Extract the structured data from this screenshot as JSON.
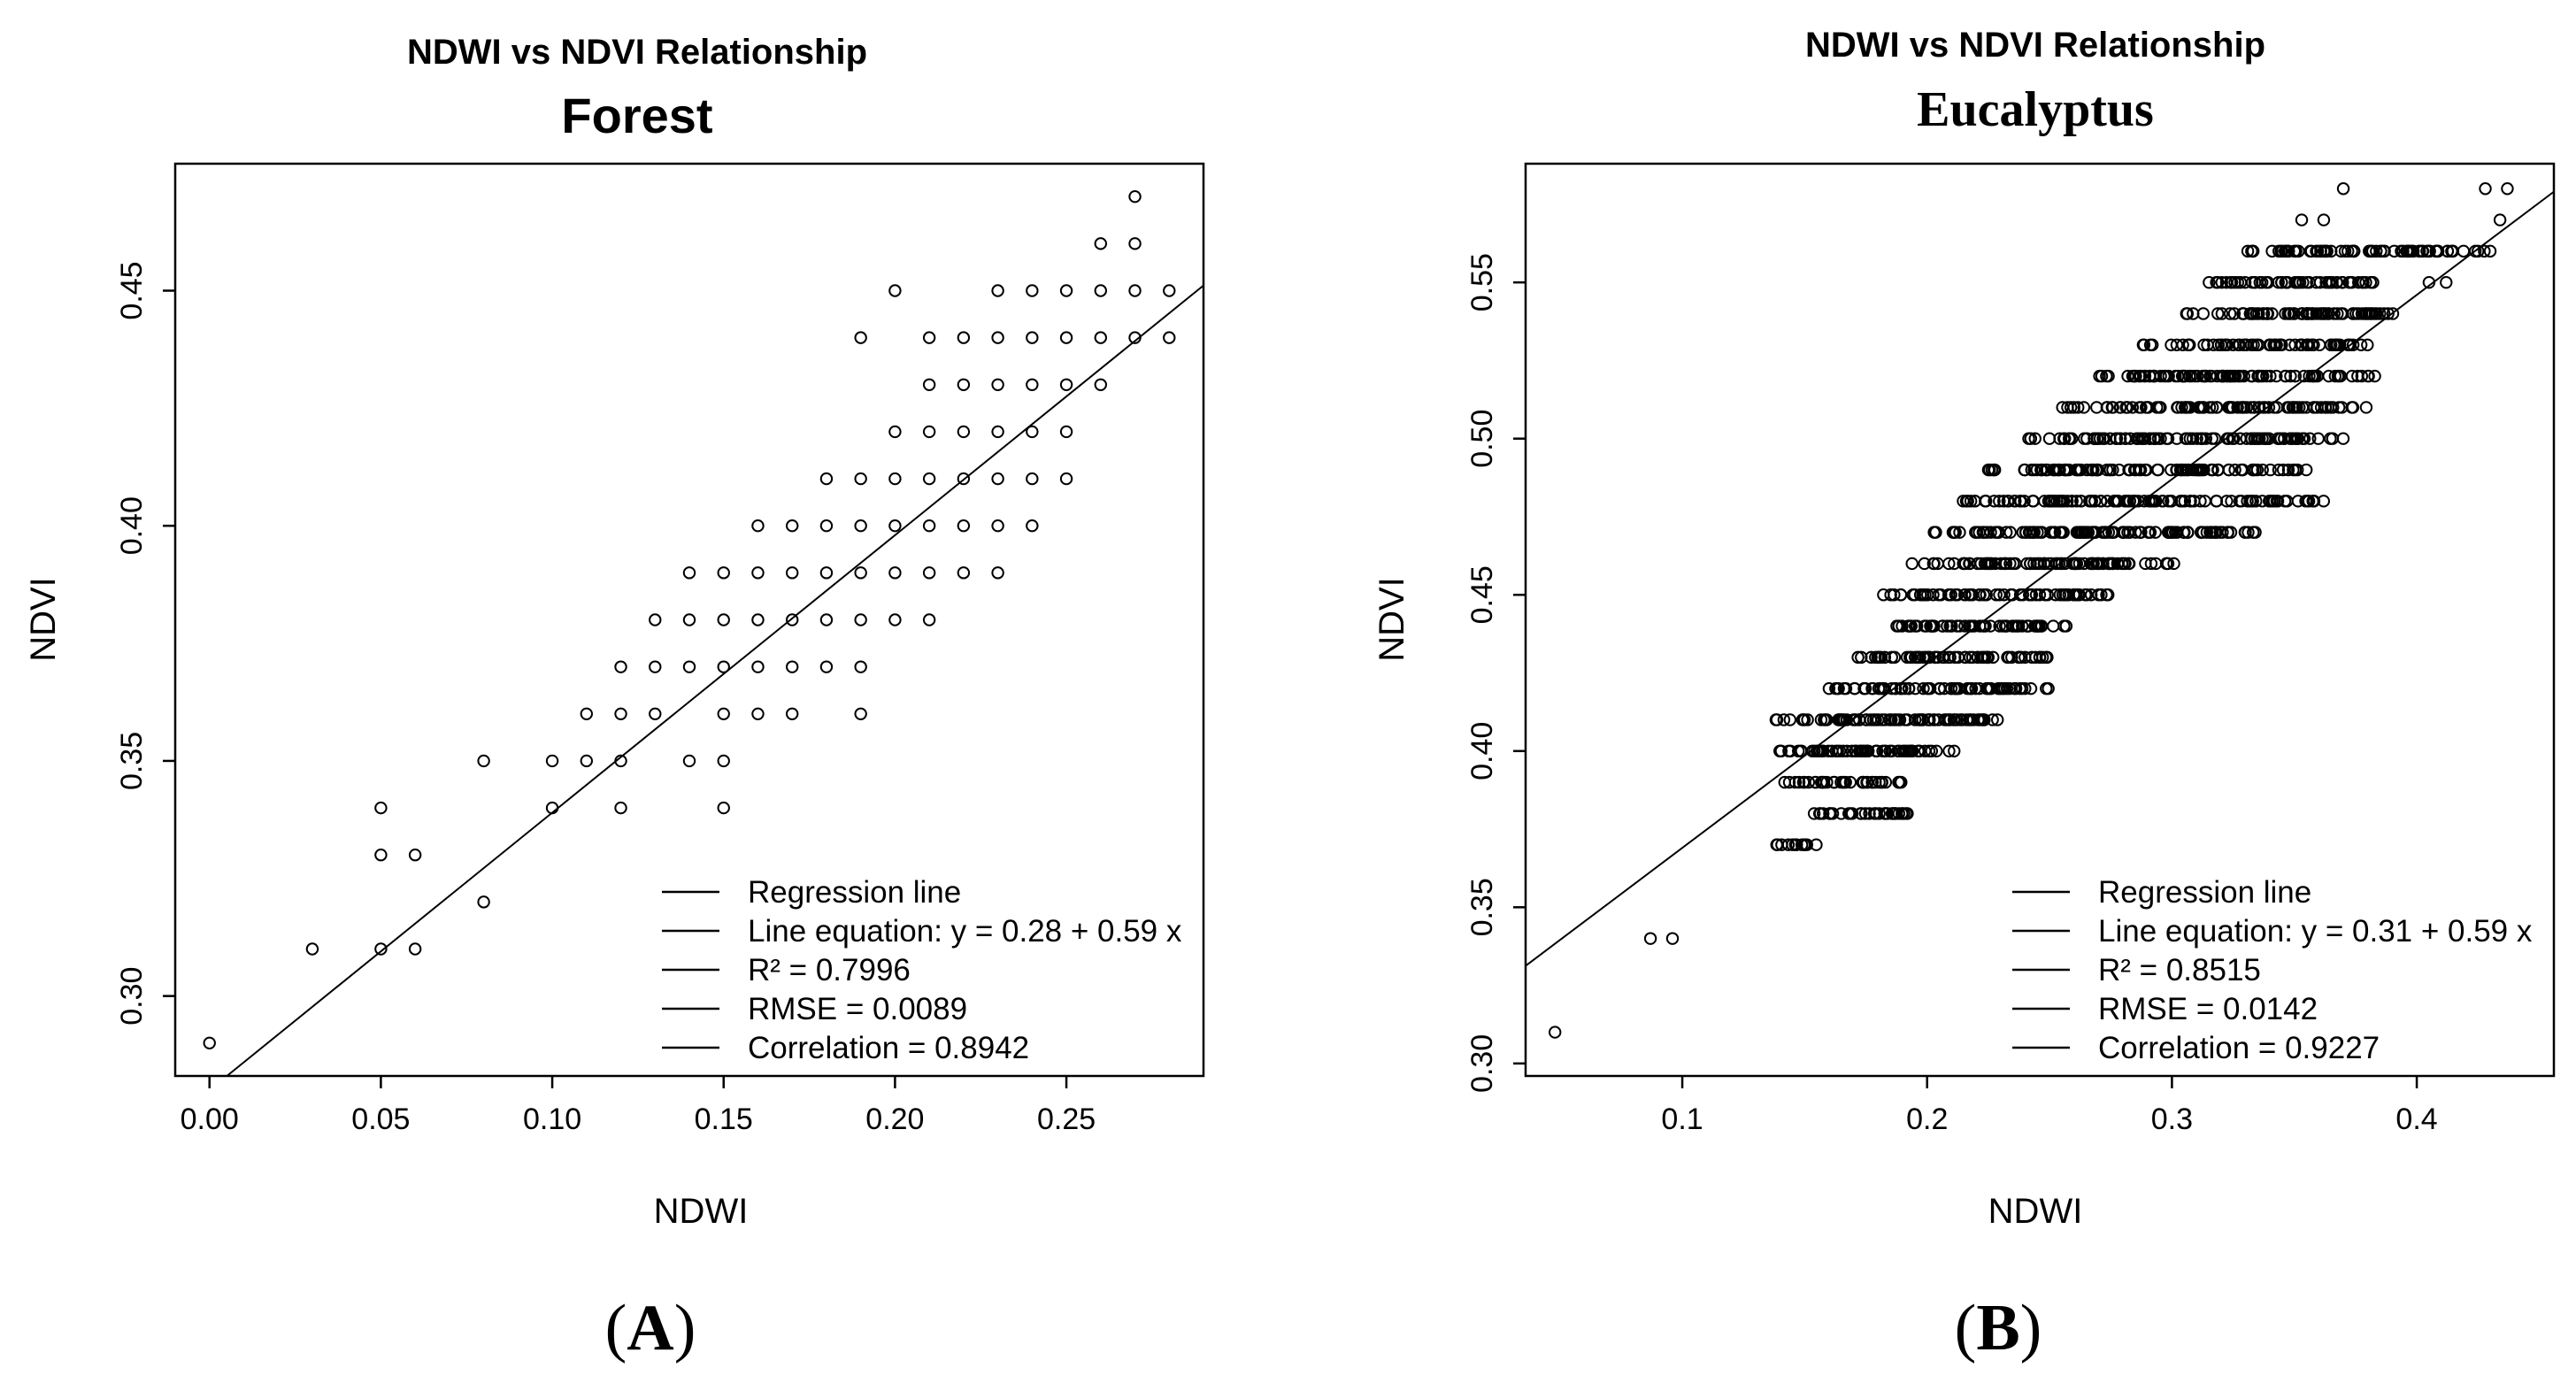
{
  "chart_data": [
    {
      "panel_letter": "A",
      "type": "scatter",
      "suptitle": "NDWI vs NDVI Relationship",
      "title": "Forest",
      "xlabel": "NDWI",
      "ylabel": "NDVI",
      "xlim": [
        -0.01,
        0.29
      ],
      "ylim": [
        0.283,
        0.477
      ],
      "xticks": [
        0.0,
        0.05,
        0.1,
        0.15,
        0.2,
        0.25
      ],
      "xtick_labels": [
        "0.00",
        "0.05",
        "0.10",
        "0.15",
        "0.20",
        "0.25"
      ],
      "yticks": [
        0.3,
        0.35,
        0.4,
        0.45
      ],
      "ytick_labels": [
        "0.30",
        "0.35",
        "0.40",
        "0.45"
      ],
      "regression": {
        "intercept": 0.28,
        "slope": 0.59
      },
      "legend_position": "bottom-right",
      "legend": [
        "Regression line",
        "Line equation: y = 0.28 + 0.59 x",
        "R² = 0.7996",
        "RMSE = 0.0089",
        "Correlation = 0.8942"
      ],
      "points": [
        [
          0.0,
          0.29
        ],
        [
          0.03,
          0.31
        ],
        [
          0.05,
          0.31
        ],
        [
          0.06,
          0.31
        ],
        [
          0.05,
          0.33
        ],
        [
          0.06,
          0.33
        ],
        [
          0.05,
          0.34
        ],
        [
          0.08,
          0.32
        ],
        [
          0.08,
          0.35
        ],
        [
          0.1,
          0.34
        ],
        [
          0.1,
          0.35
        ],
        [
          0.11,
          0.35
        ],
        [
          0.12,
          0.34
        ],
        [
          0.12,
          0.35
        ],
        [
          0.11,
          0.36
        ],
        [
          0.12,
          0.36
        ],
        [
          0.13,
          0.36
        ],
        [
          0.12,
          0.37
        ],
        [
          0.13,
          0.37
        ],
        [
          0.14,
          0.37
        ],
        [
          0.13,
          0.38
        ],
        [
          0.14,
          0.38
        ],
        [
          0.15,
          0.38
        ],
        [
          0.14,
          0.39
        ],
        [
          0.15,
          0.39
        ],
        [
          0.14,
          0.35
        ],
        [
          0.15,
          0.35
        ],
        [
          0.15,
          0.34
        ],
        [
          0.15,
          0.36
        ],
        [
          0.15,
          0.37
        ],
        [
          0.16,
          0.36
        ],
        [
          0.16,
          0.37
        ],
        [
          0.16,
          0.38
        ],
        [
          0.16,
          0.39
        ],
        [
          0.16,
          0.4
        ],
        [
          0.17,
          0.36
        ],
        [
          0.17,
          0.37
        ],
        [
          0.17,
          0.38
        ],
        [
          0.17,
          0.39
        ],
        [
          0.17,
          0.4
        ],
        [
          0.18,
          0.37
        ],
        [
          0.18,
          0.38
        ],
        [
          0.18,
          0.39
        ],
        [
          0.18,
          0.4
        ],
        [
          0.18,
          0.41
        ],
        [
          0.19,
          0.36
        ],
        [
          0.19,
          0.37
        ],
        [
          0.19,
          0.38
        ],
        [
          0.19,
          0.39
        ],
        [
          0.19,
          0.4
        ],
        [
          0.19,
          0.41
        ],
        [
          0.19,
          0.44
        ],
        [
          0.2,
          0.38
        ],
        [
          0.2,
          0.39
        ],
        [
          0.2,
          0.4
        ],
        [
          0.2,
          0.41
        ],
        [
          0.2,
          0.42
        ],
        [
          0.2,
          0.45
        ],
        [
          0.21,
          0.38
        ],
        [
          0.21,
          0.39
        ],
        [
          0.21,
          0.4
        ],
        [
          0.21,
          0.41
        ],
        [
          0.21,
          0.42
        ],
        [
          0.21,
          0.43
        ],
        [
          0.21,
          0.44
        ],
        [
          0.22,
          0.39
        ],
        [
          0.22,
          0.4
        ],
        [
          0.22,
          0.41
        ],
        [
          0.22,
          0.42
        ],
        [
          0.22,
          0.43
        ],
        [
          0.22,
          0.44
        ],
        [
          0.23,
          0.39
        ],
        [
          0.23,
          0.4
        ],
        [
          0.23,
          0.41
        ],
        [
          0.23,
          0.42
        ],
        [
          0.23,
          0.43
        ],
        [
          0.23,
          0.44
        ],
        [
          0.23,
          0.45
        ],
        [
          0.24,
          0.4
        ],
        [
          0.24,
          0.41
        ],
        [
          0.24,
          0.42
        ],
        [
          0.24,
          0.43
        ],
        [
          0.24,
          0.44
        ],
        [
          0.24,
          0.45
        ],
        [
          0.25,
          0.41
        ],
        [
          0.25,
          0.42
        ],
        [
          0.25,
          0.43
        ],
        [
          0.25,
          0.44
        ],
        [
          0.25,
          0.45
        ],
        [
          0.26,
          0.43
        ],
        [
          0.26,
          0.44
        ],
        [
          0.26,
          0.45
        ],
        [
          0.26,
          0.46
        ],
        [
          0.27,
          0.44
        ],
        [
          0.27,
          0.45
        ],
        [
          0.27,
          0.46
        ],
        [
          0.27,
          0.47
        ],
        [
          0.28,
          0.44
        ],
        [
          0.28,
          0.45
        ]
      ]
    },
    {
      "panel_letter": "B",
      "type": "scatter",
      "suptitle": "NDWI vs NDVI Relationship",
      "title": "Eucalyptus",
      "xlabel": "NDWI",
      "ylabel": "NDVI",
      "xlim": [
        0.036,
        0.456
      ],
      "ylim": [
        0.296,
        0.588
      ],
      "xticks": [
        0.1,
        0.2,
        0.3,
        0.4
      ],
      "xtick_labels": [
        "0.1",
        "0.2",
        "0.3",
        "0.4"
      ],
      "yticks": [
        0.3,
        0.35,
        0.4,
        0.45,
        0.5,
        0.55
      ],
      "ytick_labels": [
        "0.30",
        "0.35",
        "0.40",
        "0.45",
        "0.50",
        "0.55"
      ],
      "regression": {
        "intercept": 0.31,
        "slope": 0.59
      },
      "legend_position": "bottom-right",
      "legend": [
        "Regression line",
        "Line equation: y = 0.31 + 0.59 x",
        "R² = 0.8515",
        "RMSE = 0.0142",
        "Correlation = 0.9227"
      ],
      "bands": [
        [
          0.37,
          0.138,
          0.155
        ],
        [
          0.38,
          0.15,
          0.195
        ],
        [
          0.39,
          0.14,
          0.19
        ],
        [
          0.4,
          0.138,
          0.212
        ],
        [
          0.41,
          0.138,
          0.23
        ],
        [
          0.42,
          0.158,
          0.25
        ],
        [
          0.43,
          0.17,
          0.25
        ],
        [
          0.44,
          0.178,
          0.258
        ],
        [
          0.45,
          0.182,
          0.275
        ],
        [
          0.46,
          0.192,
          0.305
        ],
        [
          0.47,
          0.2,
          0.345
        ],
        [
          0.48,
          0.212,
          0.362
        ],
        [
          0.49,
          0.225,
          0.355
        ],
        [
          0.5,
          0.238,
          0.37
        ],
        [
          0.51,
          0.255,
          0.38
        ],
        [
          0.52,
          0.27,
          0.385
        ],
        [
          0.53,
          0.288,
          0.38
        ],
        [
          0.54,
          0.305,
          0.392
        ],
        [
          0.55,
          0.315,
          0.388
        ],
        [
          0.56,
          0.33,
          0.43
        ]
      ],
      "points": [
        [
          0.048,
          0.31
        ],
        [
          0.087,
          0.34
        ],
        [
          0.096,
          0.34
        ],
        [
          0.37,
          0.58
        ],
        [
          0.428,
          0.58
        ],
        [
          0.437,
          0.58
        ],
        [
          0.353,
          0.57
        ],
        [
          0.362,
          0.57
        ],
        [
          0.434,
          0.57
        ],
        [
          0.382,
          0.56
        ],
        [
          0.425,
          0.56
        ],
        [
          0.405,
          0.55
        ],
        [
          0.412,
          0.55
        ],
        [
          0.38,
          0.52
        ]
      ]
    }
  ],
  "panels": {
    "a": {
      "label_open": "(",
      "label_letter": "A",
      "label_close": ")"
    },
    "b": {
      "label_open": "(",
      "label_letter": "B",
      "label_close": ")"
    }
  }
}
